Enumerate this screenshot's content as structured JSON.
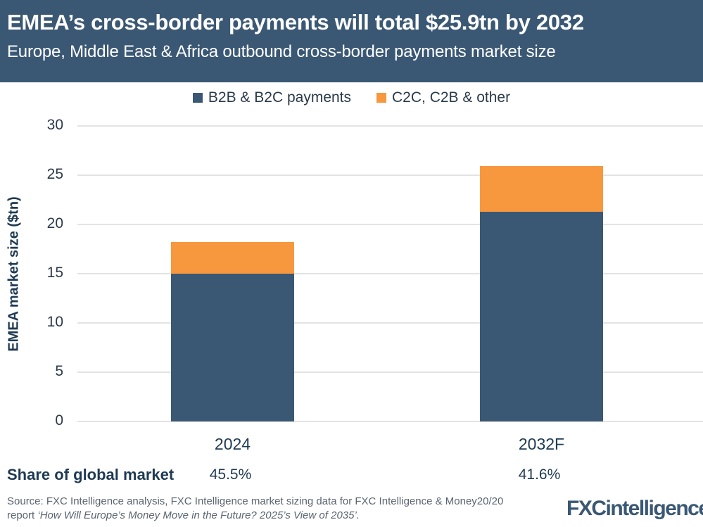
{
  "header": {
    "title": "EMEA’s cross-border payments will total $25.9tn by 2032",
    "subtitle": "Europe, Middle East & Africa outbound cross-border payments market size"
  },
  "legend": [
    {
      "label": "B2B & B2C payments",
      "color": "#3a5874"
    },
    {
      "label": "C2C, C2B & other",
      "color": "#f7983e"
    }
  ],
  "axis": {
    "ylabel": "EMEA market size ($tn)",
    "yticks": [
      "0",
      "5",
      "10",
      "15",
      "20",
      "25",
      "30"
    ]
  },
  "share": {
    "label": "Share of global market",
    "values": [
      "45.5%",
      "41.6%"
    ]
  },
  "source": {
    "prefix": "Source: FXC Intelligence analysis, FXC Intelligence market sizing data for FXC Intelligence & Money20/20 report ",
    "report": "‘How Will Europe’s Money Move in the Future? 2025’s View of 2035’."
  },
  "logo": {
    "text": "FXCintelligence",
    "tm": "™"
  },
  "chart_data": {
    "type": "bar",
    "stacked": true,
    "title": "EMEA’s cross-border payments will total $25.9tn by 2032",
    "subtitle": "Europe, Middle East & Africa outbound cross-border payments market size",
    "categories": [
      "2024",
      "2032F"
    ],
    "series": [
      {
        "name": "B2B & B2C payments",
        "values": [
          15.0,
          21.3
        ],
        "color": "#3a5874"
      },
      {
        "name": "C2C, C2B & other",
        "values": [
          3.2,
          4.6
        ],
        "color": "#f7983e"
      }
    ],
    "totals": [
      18.2,
      25.9
    ],
    "xlabel": "",
    "ylabel": "EMEA market size ($tn)",
    "ylim": [
      0,
      30
    ],
    "yticks": [
      0,
      5,
      10,
      15,
      20,
      25,
      30
    ],
    "grid": true,
    "legend_position": "top",
    "annotations": {
      "share_of_global_market": {
        "2024": "45.5%",
        "2032F": "41.6%"
      }
    }
  }
}
